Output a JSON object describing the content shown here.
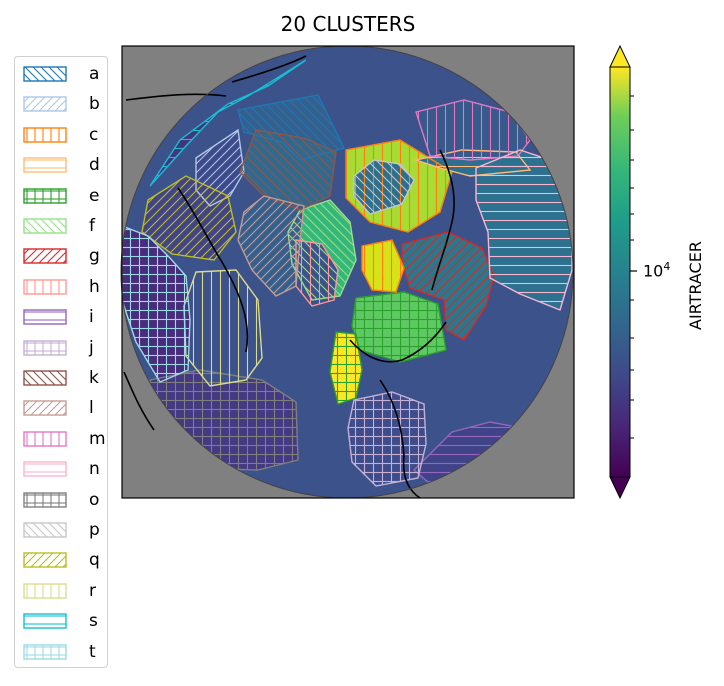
{
  "title": "20 CLUSTERS",
  "map": {
    "projection": "north-polar-stereographic",
    "background_color": "#808080",
    "coastline_color": "#000000",
    "data_field": "AIRTRACER"
  },
  "legend": {
    "items": [
      {
        "label": "a",
        "color": "#1f77b4",
        "hatch": "diag-back"
      },
      {
        "label": "b",
        "color": "#aec7e8",
        "hatch": "diag-fwd"
      },
      {
        "label": "c",
        "color": "#ff7f0e",
        "hatch": "vertical"
      },
      {
        "label": "d",
        "color": "#ffbb78",
        "hatch": "horizontal"
      },
      {
        "label": "e",
        "color": "#2ca02c",
        "hatch": "grid"
      },
      {
        "label": "f",
        "color": "#98df8a",
        "hatch": "diag-back"
      },
      {
        "label": "g",
        "color": "#d62728",
        "hatch": "diag-fwd"
      },
      {
        "label": "h",
        "color": "#ff9896",
        "hatch": "vertical"
      },
      {
        "label": "i",
        "color": "#9467bd",
        "hatch": "horizontal"
      },
      {
        "label": "j",
        "color": "#c5b0d5",
        "hatch": "grid"
      },
      {
        "label": "k",
        "color": "#8c564b",
        "hatch": "diag-back"
      },
      {
        "label": "l",
        "color": "#c49c94",
        "hatch": "diag-fwd"
      },
      {
        "label": "m",
        "color": "#e377c2",
        "hatch": "vertical"
      },
      {
        "label": "n",
        "color": "#f7b6d2",
        "hatch": "horizontal"
      },
      {
        "label": "o",
        "color": "#7f7f7f",
        "hatch": "grid"
      },
      {
        "label": "p",
        "color": "#c7c7c7",
        "hatch": "diag-back"
      },
      {
        "label": "q",
        "color": "#bcbd22",
        "hatch": "diag-fwd"
      },
      {
        "label": "r",
        "color": "#dbdb8d",
        "hatch": "vertical"
      },
      {
        "label": "s",
        "color": "#17becf",
        "hatch": "horizontal"
      },
      {
        "label": "t",
        "color": "#9edae5",
        "hatch": "grid"
      }
    ]
  },
  "colorbar": {
    "label": "AIRTRACER",
    "scale": "log",
    "colormap": "viridis",
    "extend": "both",
    "tick_base": "10",
    "tick_exponent": "4"
  },
  "regions": [
    {
      "cluster": "a",
      "hatch": "diag-back",
      "color": "#1f77b4",
      "fill": "#355f8d",
      "points": [
        [
          238,
          110
        ],
        [
          318,
          95
        ],
        [
          344,
          148
        ],
        [
          300,
          160
        ],
        [
          282,
          142
        ],
        [
          244,
          132
        ]
      ]
    },
    {
      "cluster": "b",
      "hatch": "diag-fwd",
      "color": "#aec7e8",
      "fill": "#3e4a89",
      "points": [
        [
          196,
          158
        ],
        [
          238,
          130
        ],
        [
          244,
          172
        ],
        [
          230,
          196
        ],
        [
          210,
          206
        ],
        [
          196,
          190
        ]
      ]
    },
    {
      "cluster": "c",
      "hatch": "vertical",
      "color": "#ff7f0e",
      "fill": "#a8db34",
      "points": [
        [
          346,
          150
        ],
        [
          400,
          140
        ],
        [
          452,
          172
        ],
        [
          440,
          212
        ],
        [
          408,
          232
        ],
        [
          370,
          222
        ],
        [
          346,
          198
        ]
      ]
    },
    {
      "cluster": "d",
      "hatch": "horizontal",
      "color": "#ffbb78",
      "fill": "#2e6e8e",
      "points": [
        [
          416,
          160
        ],
        [
          462,
          150
        ],
        [
          516,
          152
        ],
        [
          530,
          170
        ],
        [
          470,
          176
        ],
        [
          440,
          168
        ]
      ]
    },
    {
      "cluster": "e",
      "hatch": "grid",
      "color": "#2ca02c",
      "fill": "#5ec962",
      "points": [
        [
          356,
          298
        ],
        [
          404,
          292
        ],
        [
          438,
          304
        ],
        [
          446,
          350
        ],
        [
          400,
          362
        ],
        [
          360,
          350
        ],
        [
          352,
          326
        ]
      ]
    },
    {
      "cluster": "f",
      "hatch": "diag-back",
      "color": "#98df8a",
      "fill": "#35b779",
      "points": [
        [
          300,
          210
        ],
        [
          330,
          200
        ],
        [
          350,
          222
        ],
        [
          356,
          260
        ],
        [
          340,
          296
        ],
        [
          312,
          300
        ],
        [
          292,
          264
        ],
        [
          288,
          232
        ]
      ]
    },
    {
      "cluster": "g",
      "hatch": "diag-fwd",
      "color": "#d62728",
      "fill": "#2a788e",
      "points": [
        [
          402,
          244
        ],
        [
          448,
          232
        ],
        [
          482,
          248
        ],
        [
          494,
          276
        ],
        [
          486,
          306
        ],
        [
          464,
          340
        ],
        [
          446,
          330
        ],
        [
          444,
          300
        ],
        [
          410,
          288
        ],
        [
          402,
          262
        ]
      ]
    },
    {
      "cluster": "h",
      "hatch": "vertical",
      "color": "#ff9896",
      "fill": "#3b528b",
      "points": [
        [
          296,
          240
        ],
        [
          322,
          244
        ],
        [
          338,
          270
        ],
        [
          334,
          300
        ],
        [
          312,
          306
        ],
        [
          296,
          286
        ]
      ]
    },
    {
      "cluster": "i",
      "hatch": "horizontal",
      "color": "#9467bd",
      "fill": "#404387",
      "points": [
        [
          414,
          470
        ],
        [
          452,
          432
        ],
        [
          490,
          422
        ],
        [
          522,
          428
        ],
        [
          538,
          438
        ],
        [
          518,
          470
        ],
        [
          470,
          486
        ],
        [
          430,
          484
        ]
      ]
    },
    {
      "cluster": "j",
      "hatch": "grid",
      "color": "#c5b0d5",
      "fill": "#3e4c8a",
      "points": [
        [
          354,
          400
        ],
        [
          392,
          392
        ],
        [
          424,
          404
        ],
        [
          426,
          444
        ],
        [
          418,
          478
        ],
        [
          376,
          486
        ],
        [
          352,
          462
        ],
        [
          348,
          428
        ]
      ]
    },
    {
      "cluster": "k",
      "hatch": "diag-back",
      "color": "#8c564b",
      "fill": "#31688e",
      "points": [
        [
          256,
          130
        ],
        [
          304,
          138
        ],
        [
          336,
          152
        ],
        [
          330,
          196
        ],
        [
          300,
          210
        ],
        [
          264,
          196
        ],
        [
          240,
          172
        ]
      ]
    },
    {
      "cluster": "l",
      "hatch": "diag-fwd",
      "color": "#c49c94",
      "fill": "#355f8d",
      "points": [
        [
          264,
          196
        ],
        [
          304,
          206
        ],
        [
          300,
          240
        ],
        [
          296,
          286
        ],
        [
          276,
          296
        ],
        [
          252,
          270
        ],
        [
          238,
          240
        ],
        [
          244,
          212
        ]
      ]
    },
    {
      "cluster": "m",
      "hatch": "vertical",
      "color": "#e377c2",
      "fill": "#38598c",
      "points": [
        [
          416,
          112
        ],
        [
          464,
          100
        ],
        [
          510,
          112
        ],
        [
          530,
          140
        ],
        [
          518,
          156
        ],
        [
          470,
          160
        ],
        [
          430,
          156
        ]
      ]
    },
    {
      "cluster": "n",
      "hatch": "horizontal",
      "color": "#f7b6d2",
      "fill": "#2c718e",
      "points": [
        [
          476,
          168
        ],
        [
          520,
          150
        ],
        [
          550,
          160
        ],
        [
          572,
          200
        ],
        [
          572,
          270
        ],
        [
          560,
          310
        ],
        [
          520,
          294
        ],
        [
          490,
          278
        ],
        [
          488,
          232
        ],
        [
          476,
          200
        ]
      ]
    },
    {
      "cluster": "o",
      "hatch": "grid",
      "color": "#7f7f7f",
      "fill": "#443983",
      "points": [
        [
          150,
          380
        ],
        [
          200,
          370
        ],
        [
          262,
          380
        ],
        [
          296,
          402
        ],
        [
          298,
          460
        ],
        [
          258,
          470
        ],
        [
          196,
          468
        ],
        [
          156,
          430
        ]
      ]
    },
    {
      "cluster": "p",
      "hatch": "diag-back",
      "color": "#c7c7c7",
      "fill": "#2d708e",
      "points": [
        [
          354,
          176
        ],
        [
          374,
          160
        ],
        [
          400,
          164
        ],
        [
          414,
          180
        ],
        [
          402,
          204
        ],
        [
          370,
          214
        ],
        [
          354,
          196
        ]
      ]
    },
    {
      "cluster": "q",
      "hatch": "diag-fwd",
      "color": "#bcbd22",
      "fill": "#414487",
      "points": [
        [
          148,
          200
        ],
        [
          186,
          176
        ],
        [
          228,
          196
        ],
        [
          236,
          232
        ],
        [
          214,
          260
        ],
        [
          172,
          254
        ],
        [
          142,
          232
        ]
      ]
    },
    {
      "cluster": "r",
      "hatch": "vertical",
      "color": "#dbdb8d",
      "fill": "#3b528b",
      "points": [
        [
          196,
          272
        ],
        [
          236,
          270
        ],
        [
          258,
          300
        ],
        [
          262,
          358
        ],
        [
          246,
          380
        ],
        [
          210,
          386
        ],
        [
          186,
          356
        ],
        [
          184,
          306
        ]
      ]
    },
    {
      "cluster": "s",
      "hatch": "horizontal",
      "color": "#17becf",
      "fill": "#46337e",
      "points": [
        [
          150,
          186
        ],
        [
          180,
          140
        ],
        [
          228,
          104
        ],
        [
          268,
          86
        ],
        [
          306,
          60
        ],
        [
          248,
          96
        ],
        [
          218,
          112
        ],
        [
          186,
          146
        ]
      ]
    },
    {
      "cluster": "t",
      "hatch": "grid",
      "color": "#9edae5",
      "fill": "#472d7b",
      "points": [
        [
          122,
          226
        ],
        [
          148,
          236
        ],
        [
          170,
          258
        ],
        [
          186,
          276
        ],
        [
          190,
          320
        ],
        [
          188,
          370
        ],
        [
          160,
          382
        ],
        [
          136,
          342
        ],
        [
          122,
          300
        ]
      ]
    },
    {
      "cluster": "e",
      "hatch": "grid",
      "color": "#2ca02c",
      "fill": "#fde725",
      "points": [
        [
          336,
          332
        ],
        [
          356,
          334
        ],
        [
          362,
          370
        ],
        [
          356,
          398
        ],
        [
          338,
          404
        ],
        [
          330,
          372
        ]
      ]
    },
    {
      "cluster": "c",
      "hatch": "vertical",
      "color": "#ff7f0e",
      "fill": "#d8e219",
      "points": [
        [
          362,
          246
        ],
        [
          392,
          240
        ],
        [
          404,
          268
        ],
        [
          396,
          292
        ],
        [
          372,
          290
        ],
        [
          362,
          270
        ]
      ]
    }
  ]
}
